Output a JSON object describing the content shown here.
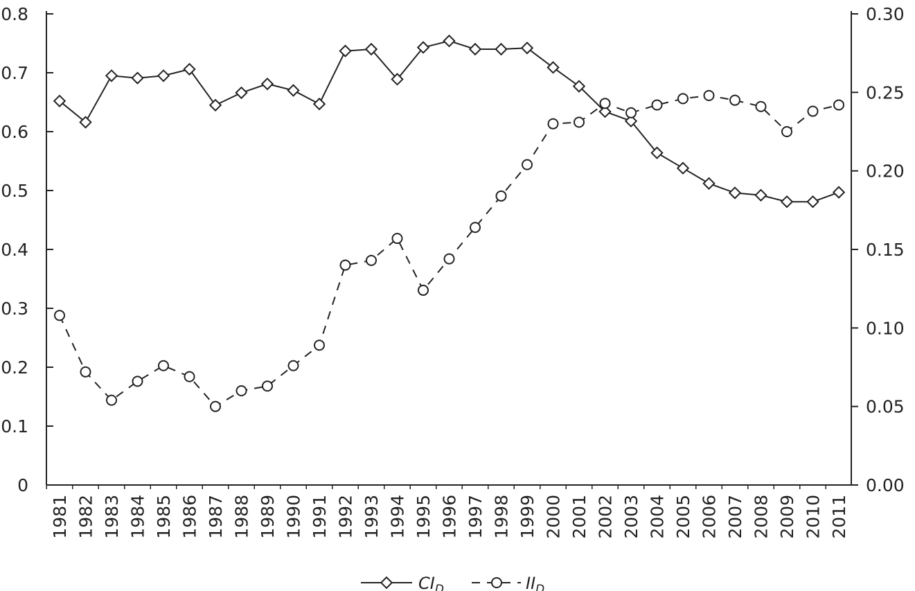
{
  "chart_data": {
    "type": "line",
    "title": "",
    "xlabel": "",
    "ylabel": "",
    "y2label": "",
    "x": [
      "1981",
      "1982",
      "1983",
      "1984",
      "1985",
      "1986",
      "1987",
      "1988",
      "1989",
      "1990",
      "1991",
      "1992",
      "1993",
      "1994",
      "1995",
      "1996",
      "1997",
      "1998",
      "1999",
      "2000",
      "2001",
      "2002",
      "2003",
      "2004",
      "2005",
      "2006",
      "2007",
      "2008",
      "2009",
      "2010",
      "2011"
    ],
    "ylim": [
      0,
      0.8
    ],
    "y_ticks": [
      "0",
      "0.1",
      "0.2",
      "0.3",
      "0.4",
      "0.5",
      "0.6",
      "0.7",
      "0.8"
    ],
    "y2lim": [
      0,
      0.3
    ],
    "y2_ticks": [
      "0.00",
      "0.05",
      "0.10",
      "0.15",
      "0.20",
      "0.25",
      "0.30"
    ],
    "grid": false,
    "legend_position": "bottom-center",
    "series": [
      {
        "name": "CI",
        "name_subscript": "D",
        "axis": "left",
        "line_style": "solid",
        "marker": "diamond",
        "values": [
          0.652,
          0.616,
          0.695,
          0.691,
          0.695,
          0.706,
          0.645,
          0.666,
          0.681,
          0.67,
          0.647,
          0.737,
          0.74,
          0.689,
          0.743,
          0.754,
          0.74,
          0.74,
          0.742,
          0.709,
          0.677,
          0.634,
          0.618,
          0.564,
          0.538,
          0.512,
          0.496,
          0.492,
          0.481,
          0.481,
          0.497
        ]
      },
      {
        "name": "II",
        "name_subscript": "D",
        "axis": "right",
        "line_style": "dashed",
        "marker": "circle",
        "values": [
          0.108,
          0.072,
          0.054,
          0.066,
          0.076,
          0.069,
          0.05,
          0.06,
          0.063,
          0.076,
          0.089,
          0.14,
          0.143,
          0.157,
          0.124,
          0.144,
          0.164,
          0.184,
          0.204,
          0.23,
          0.231,
          0.243,
          0.237,
          0.242,
          0.246,
          0.248,
          0.245,
          0.241,
          0.225,
          0.238,
          0.242
        ]
      }
    ]
  }
}
